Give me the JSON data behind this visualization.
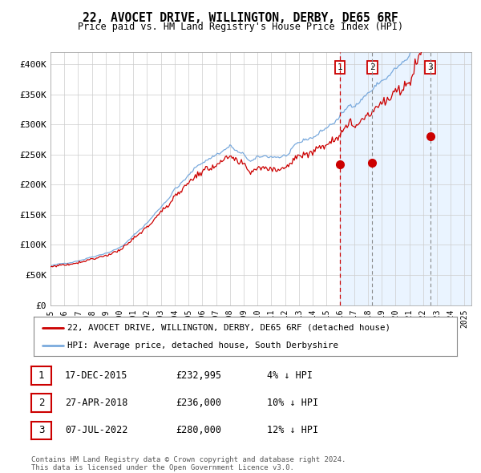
{
  "title": "22, AVOCET DRIVE, WILLINGTON, DERBY, DE65 6RF",
  "subtitle": "Price paid vs. HM Land Registry's House Price Index (HPI)",
  "ylabel_ticks": [
    "£0",
    "£50K",
    "£100K",
    "£150K",
    "£200K",
    "£250K",
    "£300K",
    "£350K",
    "£400K"
  ],
  "ytick_vals": [
    0,
    50000,
    100000,
    150000,
    200000,
    250000,
    300000,
    350000,
    400000
  ],
  "ylim": [
    0,
    420000
  ],
  "xlim_start": 1995.0,
  "xlim_end": 2025.5,
  "hpi_color": "#7aaadd",
  "price_color": "#cc0000",
  "sale_dot_color": "#cc0000",
  "vline1_color": "#cc0000",
  "vline23_color": "#888888",
  "shade_color": "#ddeeff",
  "sale1_x": 2015.96,
  "sale1_y": 232995,
  "sale2_x": 2018.32,
  "sale2_y": 236000,
  "sale3_x": 2022.51,
  "sale3_y": 280000,
  "legend_line1": "22, AVOCET DRIVE, WILLINGTON, DERBY, DE65 6RF (detached house)",
  "legend_line2": "HPI: Average price, detached house, South Derbyshire",
  "table_rows": [
    [
      "1",
      "17-DEC-2015",
      "£232,995",
      "4% ↓ HPI"
    ],
    [
      "2",
      "27-APR-2018",
      "£236,000",
      "10% ↓ HPI"
    ],
    [
      "3",
      "07-JUL-2022",
      "£280,000",
      "12% ↓ HPI"
    ]
  ],
  "footnote": "Contains HM Land Registry data © Crown copyright and database right 2024.\nThis data is licensed under the Open Government Licence v3.0.",
  "background_color": "#ffffff",
  "grid_color": "#cccccc"
}
